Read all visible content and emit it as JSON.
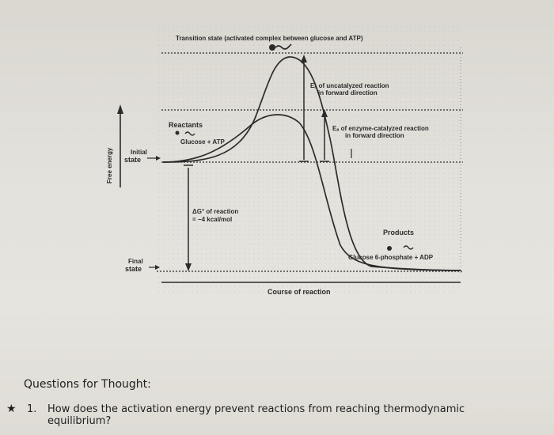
{
  "diagram": {
    "top_label": "Transition state (activated complex between glucose and ATP)",
    "uncatalyzed_line1": "Eₐ of uncatalyzed reaction",
    "uncatalyzed_line2": "in forward direction",
    "catalyzed_line1": "Eₐ of enzyme-catalyzed reaction",
    "catalyzed_line2": "in forward direction",
    "reactants_label": "Reactants",
    "reactants_formula": "Glucose + ATP",
    "initial_state_line1": "Initial",
    "initial_state_line2": "state",
    "delta_g_line1": "ΔG° of reaction",
    "delta_g_line2": "= −4 kcal/mol",
    "products_label": "Products",
    "products_formula": "Glucose 6-phosphate + ADP",
    "final_state_line1": "Final",
    "final_state_line2": "state",
    "y_axis_label": "Free energy",
    "x_axis_label": "Course of reaction"
  },
  "questions": {
    "title": "Questions for Thought:",
    "items": [
      {
        "number": "1.",
        "text": "How does the activation energy prevent reactions from reaching thermodynamic equilibrium?"
      }
    ]
  },
  "colors": {
    "curve": "#2b2b2b",
    "dotted": "#555555",
    "paper": "#e2e0da"
  }
}
